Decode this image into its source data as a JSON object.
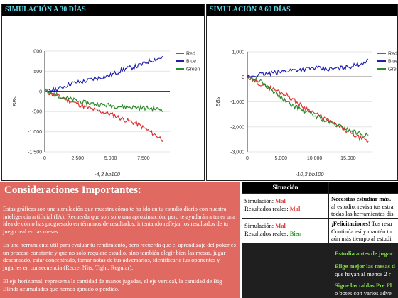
{
  "charts": {
    "left": {
      "title": "SIMULACIÓN A 30 DÍAS",
      "ylabel": "BBs",
      "xlabel": "-4,3 bb100",
      "yticks": [
        "1,000",
        "500",
        "0",
        "-500",
        "-1,000",
        "-1,500"
      ],
      "xticks": [
        "0",
        "2,500",
        "5,000",
        "7,500"
      ],
      "legend": [
        "Red",
        "Blue",
        "Green"
      ]
    },
    "right": {
      "title": "SIMULACIÓN A 60 DÍAS",
      "ylabel": "BBs",
      "xlabel": "-10,3 bb100",
      "yticks": [
        "1,000",
        "0",
        "-1,000",
        "-2,000",
        "-3,000"
      ],
      "xticks": [
        "0",
        "5,000",
        "10,000",
        "15,000"
      ],
      "legend": [
        "Red",
        "Blue",
        "Gree"
      ]
    }
  },
  "chart_data": [
    {
      "type": "line",
      "title": "SIMULACIÓN A 30 DÍAS",
      "xlabel": "-4,3 bb100",
      "ylabel": "BBs",
      "xlim": [
        0,
        9500
      ],
      "ylim": [
        -1500,
        1000
      ],
      "x": [
        0,
        1000,
        2000,
        3000,
        4000,
        5000,
        6000,
        7000,
        8000,
        9000
      ],
      "series": [
        {
          "name": "Red",
          "color": "#e03030",
          "values": [
            0,
            -120,
            -250,
            -380,
            -480,
            -560,
            -700,
            -800,
            -1000,
            -1200
          ]
        },
        {
          "name": "Blue",
          "color": "#2020b0",
          "values": [
            0,
            60,
            200,
            250,
            330,
            400,
            550,
            620,
            760,
            850
          ]
        },
        {
          "name": "Green",
          "color": "#2a8a2a",
          "values": [
            0,
            -100,
            -200,
            -280,
            -320,
            -350,
            -380,
            -400,
            -420,
            -450
          ]
        }
      ]
    },
    {
      "type": "line",
      "title": "SIMULACIÓN A 60 DÍAS",
      "xlabel": "-10,3 bb100",
      "ylabel": "BBs",
      "xlim": [
        0,
        18500
      ],
      "ylim": [
        -3000,
        1000
      ],
      "x": [
        0,
        2000,
        4000,
        6000,
        8000,
        10000,
        12000,
        14000,
        16000,
        18000
      ],
      "series": [
        {
          "name": "Red",
          "color": "#e03030",
          "values": [
            0,
            -300,
            -500,
            -750,
            -1150,
            -1450,
            -1750,
            -2050,
            -2350,
            -2600
          ]
        },
        {
          "name": "Blue",
          "color": "#2020b0",
          "values": [
            0,
            100,
            150,
            250,
            300,
            350,
            300,
            350,
            450,
            650
          ]
        },
        {
          "name": "Gree",
          "color": "#2a8a2a",
          "values": [
            0,
            -200,
            -600,
            -1050,
            -1300,
            -1550,
            -1800,
            -2000,
            -2200,
            -2350
          ]
        }
      ]
    }
  ],
  "consideraciones": {
    "title": "Consideraciones Importantes:",
    "paragraphs": [
      "Estas gráficas son una simulación que muestra cómo te ha ido en tu estudio diario con nuestra inteligencia artificial (IA). Recuerda que son solo una aproximación, pero te ayudarán a tener una idea de cómo has progresado en términos de resultados, intentando reflejar los resultados de tu juego real en las mesas.",
      "Es una herramienta útil para evaluar tu rendimiento, pero recuerda que el aprendizaje del poker es un proceso constante y que no solo requiere estudio, sino también elegir bien las mesas, jugar descansado, estar concentrado, tomar notas de tus adversarios, identificar a tus oponentes y jugarles en consecuencia (Recre, Nits, Tight, Regular).",
      "El eje horizontal, representa la cantidad de manos jugadas, el eje vertical, la cantidad de Big Blinds acumuladas que hemos ganado o perdido."
    ]
  },
  "situacion": {
    "header": "Situación",
    "rows": [
      {
        "sim_label": "Simulación:",
        "sim_value": "Mal",
        "real_label": "Resultados reales:",
        "real_value": "Mal",
        "msg_bold": "Necesitas estudiar más.",
        "msg_lines": [
          "al estudio, revisa tus estra",
          "todas las herramientas dis"
        ]
      },
      {
        "sim_label": "Simulación:",
        "sim_value": "Mal",
        "real_label": "Resultados reales:",
        "real_value": "Bien",
        "msg_bold": "¡Felicitaciones!",
        "msg_rest": " Tus resu",
        "msg_lines": [
          "Continúa así y mantén tu",
          "aún más tiempo al estudi"
        ]
      }
    ],
    "tips": [
      {
        "bold": "Estudia antes de jugar"
      },
      {
        "bold": "Elige mejor las mesas d",
        "rest": "que hayan al menos 2 r"
      },
      {
        "bold": "Sigue las tablas Pre Fl",
        "rest": "o botes con varios adve"
      }
    ]
  }
}
